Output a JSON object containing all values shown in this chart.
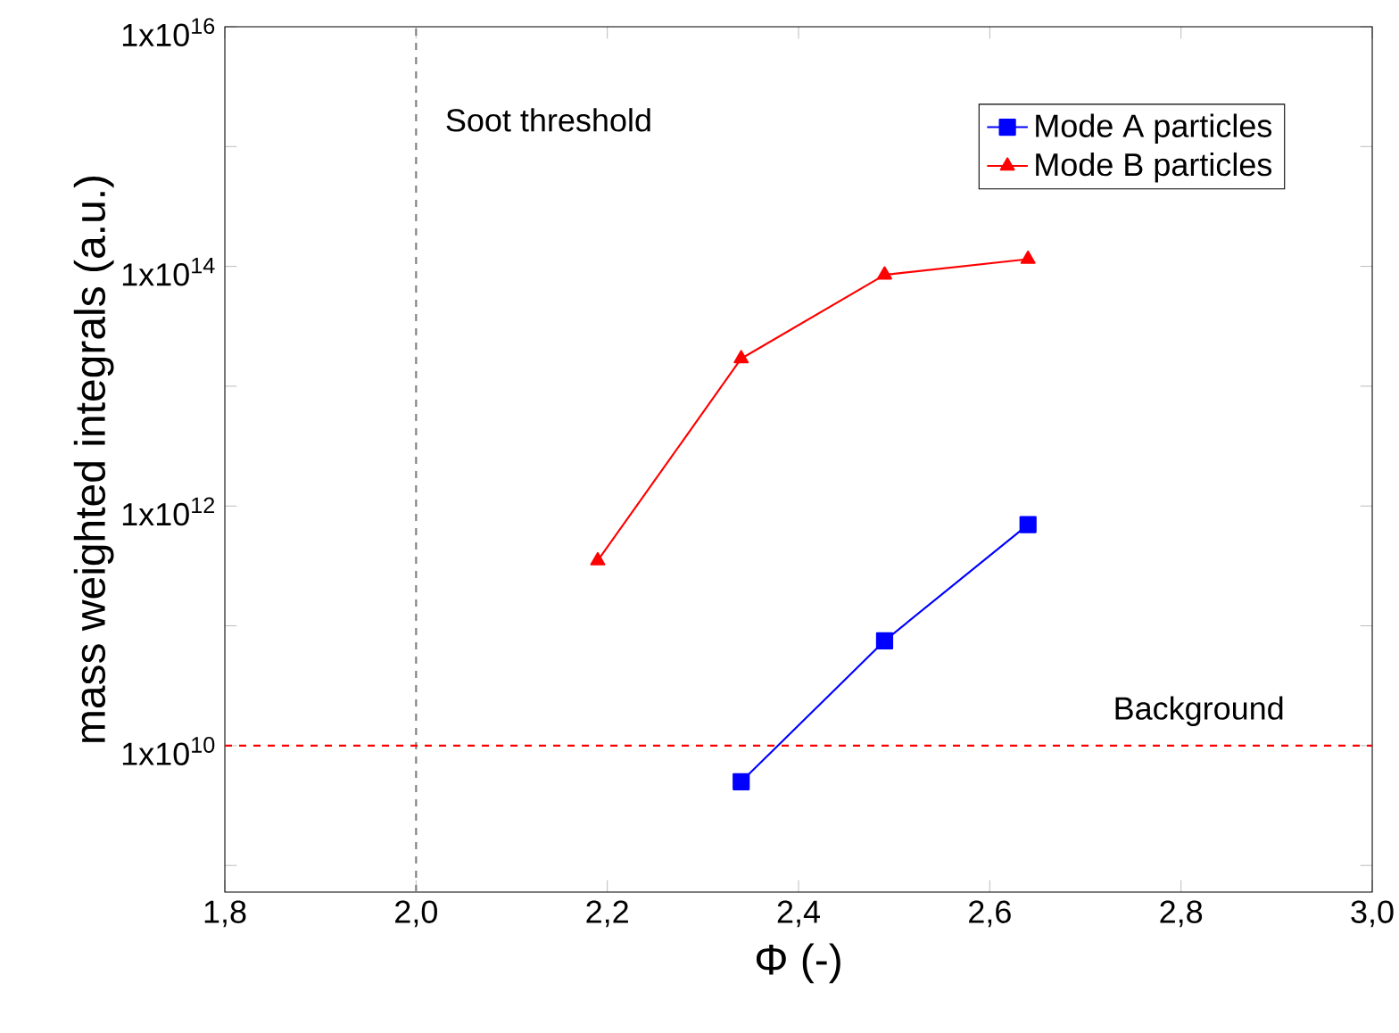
{
  "chart_data": {
    "type": "line",
    "xlabel": "Φ (-)",
    "ylabel": "mass weighted integrals (a.u.)",
    "series": [
      {
        "name": "Mode A particles",
        "color": "#0000ff",
        "marker": "square",
        "x": [
          2.34,
          2.49,
          2.64
        ],
        "values": [
          5000000000.0,
          75000000000.0,
          700000000000.0
        ]
      },
      {
        "name": "Mode B particles",
        "color": "#ff0000",
        "marker": "triangle",
        "x": [
          2.19,
          2.34,
          2.49,
          2.64
        ],
        "values": [
          350000000000.0,
          17000000000000.0,
          85000000000000.0,
          115000000000000.0
        ]
      }
    ],
    "xlim": [
      1.8,
      3.0
    ],
    "ylim": [
      600000000.0,
      1e+16
    ],
    "log": "y",
    "xticks": [
      {
        "value": 1.8,
        "label": "1,8"
      },
      {
        "value": 2.0,
        "label": "2,0"
      },
      {
        "value": 2.2,
        "label": "2,2"
      },
      {
        "value": 2.4,
        "label": "2,4"
      },
      {
        "value": 2.6,
        "label": "2,6"
      },
      {
        "value": 2.8,
        "label": "2,8"
      },
      {
        "value": 3.0,
        "label": "3,0"
      }
    ],
    "yticks": [
      {
        "value": 1000000000.0,
        "label": null
      },
      {
        "value": 10000000000.0,
        "label": "1x10$^{10}$"
      },
      {
        "value": 100000000000.0,
        "label": null
      },
      {
        "value": 1000000000000.0,
        "label": "1x10$^{12}$"
      },
      {
        "value": 10000000000000.0,
        "label": null
      },
      {
        "value": 100000000000000.0,
        "label": "1x10$^{14}$"
      },
      {
        "value": 1000000000000000.0,
        "label": null
      },
      {
        "value": 1e+16,
        "label": "1x10$^{16}$"
      }
    ],
    "ref_lines": [
      {
        "axis": "x",
        "value": 2.0,
        "label": "Soot threshold",
        "color": "#808080",
        "line_style": "dashed"
      },
      {
        "axis": "y",
        "value": 10000000000.0,
        "label": "Background",
        "color": "#ff0000",
        "line_style": "dashed"
      }
    ],
    "legend": "top right",
    "line_style": "solid"
  }
}
